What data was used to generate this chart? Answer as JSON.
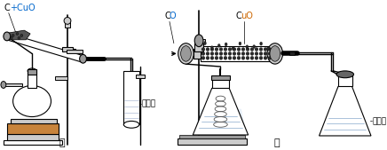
{
  "bg_color": "#ffffff",
  "label_jia": "甲",
  "label_yi": "乙",
  "label_shihui_left": "石灰水",
  "label_shihui_right": "石灰水",
  "label_C": "C",
  "label_plus_CuO": "+CuO",
  "label_CO": "CO",
  "label_CuO": "CuO",
  "black": "#000000",
  "blue": "#0066cc",
  "orange_brown": "#cc6600",
  "dark_fill": "#555555",
  "light_blue": "#d8eef8",
  "wood_color": "#c8843c",
  "gray_light": "#cccccc",
  "gray_mid": "#999999",
  "gray_dark": "#666666",
  "figsize": [
    4.36,
    1.69
  ],
  "dpi": 100
}
